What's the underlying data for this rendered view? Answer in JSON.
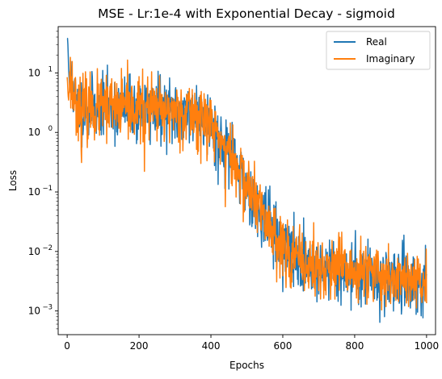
{
  "chart_data": {
    "type": "line",
    "title": "MSE - Lr:1e-4 with Exponential Decay - sigmoid",
    "xlabel": "Epochs",
    "ylabel": "Loss",
    "xlim": [
      -25,
      1025
    ],
    "ylim": [
      0.0004,
      60
    ],
    "yscale": "log",
    "xticks": [
      0,
      200,
      400,
      600,
      800,
      1000
    ],
    "xtick_labels": [
      "0",
      "200",
      "400",
      "600",
      "800",
      "1000"
    ],
    "yticks": [
      {
        "value": 0.001,
        "base": "10",
        "exp": "−3"
      },
      {
        "value": 0.01,
        "base": "10",
        "exp": "−2"
      },
      {
        "value": 0.1,
        "base": "10",
        "exp": "−1"
      },
      {
        "value": 1,
        "base": "10",
        "exp": "0"
      },
      {
        "value": 10,
        "base": "10",
        "exp": "1"
      }
    ],
    "grid": false,
    "legend_position": "top-right",
    "trend_points": [
      [
        0,
        12
      ],
      [
        30,
        2.6
      ],
      [
        150,
        2.6
      ],
      [
        350,
        2.2
      ],
      [
        400,
        1.4
      ],
      [
        450,
        0.45
      ],
      [
        500,
        0.13
      ],
      [
        550,
        0.035
      ],
      [
        600,
        0.013
      ],
      [
        650,
        0.0065
      ],
      [
        700,
        0.0055
      ],
      [
        800,
        0.0046
      ],
      [
        900,
        0.0038
      ],
      [
        1000,
        0.003
      ]
    ],
    "series": [
      {
        "name": "Real",
        "color": "#1f77b4",
        "start_values": [
          38,
          38,
          30,
          20,
          12,
          9,
          7,
          6,
          5
        ],
        "noise_sigma": 0.35,
        "dips": [
          [
            60,
            0.35
          ],
          [
            72,
            0.5
          ],
          [
            95,
            0.35
          ],
          [
            140,
            0.35
          ],
          [
            195,
            0.3
          ],
          [
            230,
            0.45
          ],
          [
            300,
            0.35
          ],
          [
            340,
            0.3
          ],
          [
            420,
            0.15
          ],
          [
            480,
            0.3
          ],
          [
            530,
            0.3
          ],
          [
            580,
            0.35
          ],
          [
            630,
            0.3
          ],
          [
            680,
            0.4
          ],
          [
            700,
            0.35
          ],
          [
            770,
            0.45
          ],
          [
            830,
            0.3
          ],
          [
            870,
            0.16
          ],
          [
            930,
            0.25
          ],
          [
            975,
            0.3
          ],
          [
            995,
            0.5
          ]
        ],
        "seed": 11
      },
      {
        "name": "Imaginary",
        "color": "#ff7f0e",
        "start_values": [
          8.5,
          7,
          5,
          4,
          3.5
        ],
        "noise_sigma": 0.35,
        "dips": [
          [
            28,
            0.35
          ],
          [
            40,
            0.12
          ],
          [
            58,
            0.3
          ],
          [
            80,
            0.4
          ],
          [
            110,
            0.25
          ],
          [
            170,
            0.3
          ],
          [
            215,
            0.09
          ],
          [
            250,
            0.3
          ],
          [
            270,
            0.3
          ],
          [
            310,
            0.3
          ],
          [
            365,
            0.25
          ],
          [
            390,
            0.3
          ],
          [
            440,
            0.1
          ],
          [
            470,
            0.3
          ],
          [
            600,
            0.3
          ],
          [
            620,
            0.4
          ],
          [
            660,
            0.35
          ],
          [
            700,
            0.4
          ],
          [
            720,
            0.35
          ],
          [
            810,
            0.3
          ],
          [
            900,
            0.35
          ],
          [
            950,
            0.35
          ],
          [
            972,
            0.35
          ],
          [
            1000,
            0.45
          ]
        ],
        "seed": 23
      }
    ]
  }
}
